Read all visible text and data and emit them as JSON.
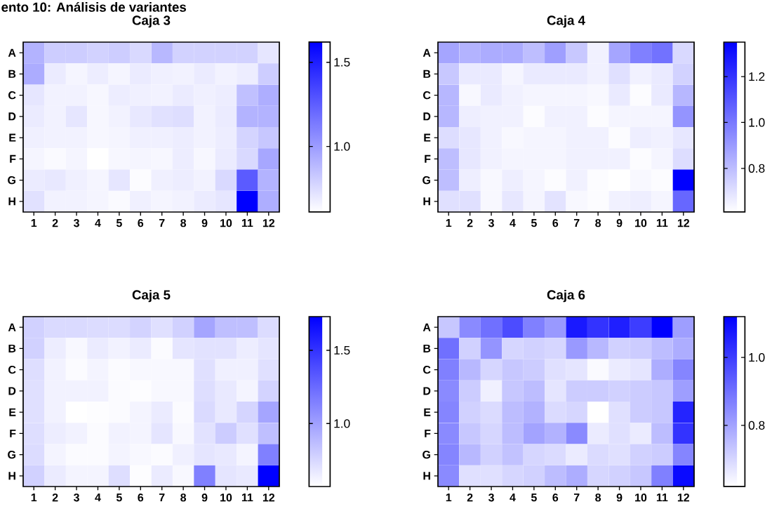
{
  "chart_data": [
    {
      "type": "heatmap",
      "title": "Caja 3",
      "annotations": [
        "ento 10: Análisis de variantes"
      ],
      "categories": [
        "1",
        "2",
        "3",
        "4",
        "5",
        "6",
        "7",
        "8",
        "9",
        "10",
        "11",
        "12"
      ],
      "y_categories": [
        "A",
        "B",
        "C",
        "D",
        "E",
        "F",
        "G",
        "H"
      ],
      "clim": [
        0.61,
        1.62
      ],
      "cticks": [
        {
          "value": 1.0,
          "label": "1.0"
        },
        {
          "value": 1.5,
          "label": "1.5"
        }
      ],
      "cells": [
        [
          0.91,
          0.81,
          0.81,
          0.79,
          0.81,
          0.76,
          0.89,
          0.79,
          0.79,
          0.79,
          0.79,
          0.71
        ],
        [
          0.94,
          0.69,
          0.65,
          0.68,
          0.65,
          0.69,
          0.67,
          0.66,
          0.69,
          0.66,
          0.68,
          0.81
        ],
        [
          0.71,
          0.66,
          0.66,
          0.64,
          0.68,
          0.67,
          0.66,
          0.69,
          0.67,
          0.68,
          0.86,
          0.93
        ],
        [
          0.69,
          0.66,
          0.71,
          0.64,
          0.66,
          0.7,
          0.73,
          0.74,
          0.66,
          0.69,
          0.91,
          0.91
        ],
        [
          0.67,
          0.66,
          0.66,
          0.64,
          0.65,
          0.67,
          0.67,
          0.68,
          0.66,
          0.68,
          0.78,
          0.83
        ],
        [
          0.65,
          0.63,
          0.65,
          0.61,
          0.64,
          0.65,
          0.64,
          0.68,
          0.64,
          0.69,
          0.76,
          0.96
        ],
        [
          0.69,
          0.7,
          0.67,
          0.65,
          0.71,
          0.62,
          0.67,
          0.68,
          0.66,
          0.76,
          1.26,
          0.91
        ],
        [
          0.73,
          0.66,
          0.66,
          0.65,
          0.63,
          0.67,
          0.65,
          0.66,
          0.69,
          0.71,
          1.62,
          0.93
        ]
      ]
    },
    {
      "type": "heatmap",
      "title": "Caja 4",
      "categories": [
        "1",
        "2",
        "3",
        "4",
        "5",
        "6",
        "7",
        "8",
        "9",
        "10",
        "11",
        "12"
      ],
      "y_categories": [
        "A",
        "B",
        "C",
        "D",
        "E",
        "F",
        "G",
        "H"
      ],
      "clim": [
        0.61,
        1.35
      ],
      "cticks": [
        {
          "value": 0.8,
          "label": "0.8"
        },
        {
          "value": 1.0,
          "label": "1.0"
        },
        {
          "value": 1.2,
          "label": "1.2"
        }
      ],
      "cells": [
        [
          0.87,
          0.83,
          0.85,
          0.85,
          0.8,
          0.89,
          0.77,
          0.65,
          0.87,
          0.98,
          1.02,
          0.72
        ],
        [
          0.77,
          0.67,
          0.67,
          0.64,
          0.67,
          0.67,
          0.67,
          0.65,
          0.7,
          0.65,
          0.67,
          0.74
        ],
        [
          0.82,
          0.63,
          0.67,
          0.65,
          0.64,
          0.64,
          0.64,
          0.63,
          0.67,
          0.62,
          0.67,
          0.82
        ],
        [
          0.82,
          0.66,
          0.65,
          0.65,
          0.62,
          0.65,
          0.65,
          0.62,
          0.64,
          0.64,
          0.64,
          0.92
        ],
        [
          0.71,
          0.68,
          0.65,
          0.63,
          0.64,
          0.64,
          0.65,
          0.65,
          0.62,
          0.66,
          0.65,
          0.68
        ],
        [
          0.8,
          0.68,
          0.65,
          0.64,
          0.64,
          0.64,
          0.65,
          0.65,
          0.65,
          0.62,
          0.64,
          0.71
        ],
        [
          0.8,
          0.66,
          0.63,
          0.66,
          0.64,
          0.62,
          0.65,
          0.62,
          0.61,
          0.63,
          0.62,
          1.35
        ],
        [
          0.7,
          0.7,
          0.63,
          0.68,
          0.64,
          0.69,
          0.63,
          0.62,
          0.65,
          0.66,
          0.64,
          1.05
        ]
      ]
    },
    {
      "type": "heatmap",
      "title": "Caja 5",
      "categories": [
        "1",
        "2",
        "3",
        "4",
        "5",
        "6",
        "7",
        "8",
        "9",
        "10",
        "11",
        "12"
      ],
      "y_categories": [
        "A",
        "B",
        "C",
        "D",
        "E",
        "F",
        "G",
        "H"
      ],
      "clim": [
        0.57,
        1.73
      ],
      "cticks": [
        {
          "value": 1.0,
          "label": "1.0"
        },
        {
          "value": 1.5,
          "label": "1.5"
        }
      ],
      "cells": [
        [
          0.78,
          0.74,
          0.74,
          0.73,
          0.73,
          0.77,
          0.71,
          0.78,
          0.98,
          0.86,
          0.86,
          0.73
        ],
        [
          0.78,
          0.65,
          0.6,
          0.66,
          0.63,
          0.66,
          0.59,
          0.69,
          0.7,
          0.7,
          0.65,
          0.69
        ],
        [
          0.72,
          0.63,
          0.59,
          0.62,
          0.59,
          0.6,
          0.6,
          0.6,
          0.71,
          0.64,
          0.64,
          0.71
        ],
        [
          0.71,
          0.63,
          0.63,
          0.63,
          0.59,
          0.58,
          0.6,
          0.6,
          0.72,
          0.67,
          0.62,
          0.77
        ],
        [
          0.71,
          0.63,
          0.57,
          0.58,
          0.59,
          0.62,
          0.66,
          0.59,
          0.74,
          0.67,
          0.76,
          0.98
        ],
        [
          0.72,
          0.65,
          0.63,
          0.59,
          0.63,
          0.62,
          0.69,
          0.6,
          0.7,
          0.8,
          0.71,
          0.86
        ],
        [
          0.73,
          0.62,
          0.59,
          0.59,
          0.62,
          0.6,
          0.59,
          0.64,
          0.69,
          0.67,
          0.62,
          1.15
        ],
        [
          0.78,
          0.66,
          0.62,
          0.62,
          0.72,
          0.58,
          0.66,
          0.6,
          1.15,
          0.69,
          0.67,
          1.73
        ]
      ]
    },
    {
      "type": "heatmap",
      "title": "Caja 6",
      "categories": [
        "1",
        "2",
        "3",
        "4",
        "5",
        "6",
        "7",
        "8",
        "9",
        "10",
        "11",
        "12"
      ],
      "y_categories": [
        "A",
        "B",
        "C",
        "D",
        "E",
        "F",
        "G",
        "H"
      ],
      "clim": [
        0.62,
        1.12
      ],
      "cticks": [
        {
          "value": 0.8,
          "label": "0.8"
        },
        {
          "value": 1.0,
          "label": "1.0"
        }
      ],
      "cells": [
        [
          0.73,
          0.85,
          0.9,
          0.97,
          0.87,
          0.82,
          1.07,
          1.02,
          1.06,
          1.0,
          1.12,
          0.81
        ],
        [
          0.9,
          0.71,
          0.83,
          0.7,
          0.71,
          0.7,
          0.82,
          0.76,
          0.71,
          0.72,
          0.75,
          0.78
        ],
        [
          0.87,
          0.76,
          0.7,
          0.73,
          0.72,
          0.68,
          0.67,
          0.63,
          0.66,
          0.67,
          0.78,
          0.86
        ],
        [
          0.85,
          0.72,
          0.65,
          0.73,
          0.75,
          0.67,
          0.72,
          0.72,
          0.71,
          0.72,
          0.73,
          0.81
        ],
        [
          0.86,
          0.71,
          0.69,
          0.75,
          0.77,
          0.69,
          0.7,
          0.62,
          0.68,
          0.72,
          0.73,
          1.05
        ],
        [
          0.85,
          0.73,
          0.7,
          0.75,
          0.8,
          0.77,
          0.85,
          0.66,
          0.68,
          0.66,
          0.75,
          1.02
        ],
        [
          0.86,
          0.76,
          0.71,
          0.74,
          0.7,
          0.69,
          0.66,
          0.69,
          0.68,
          0.71,
          0.72,
          0.86
        ],
        [
          0.85,
          0.68,
          0.68,
          0.7,
          0.71,
          0.75,
          0.78,
          0.7,
          0.71,
          0.73,
          0.87,
          1.1
        ]
      ]
    }
  ]
}
